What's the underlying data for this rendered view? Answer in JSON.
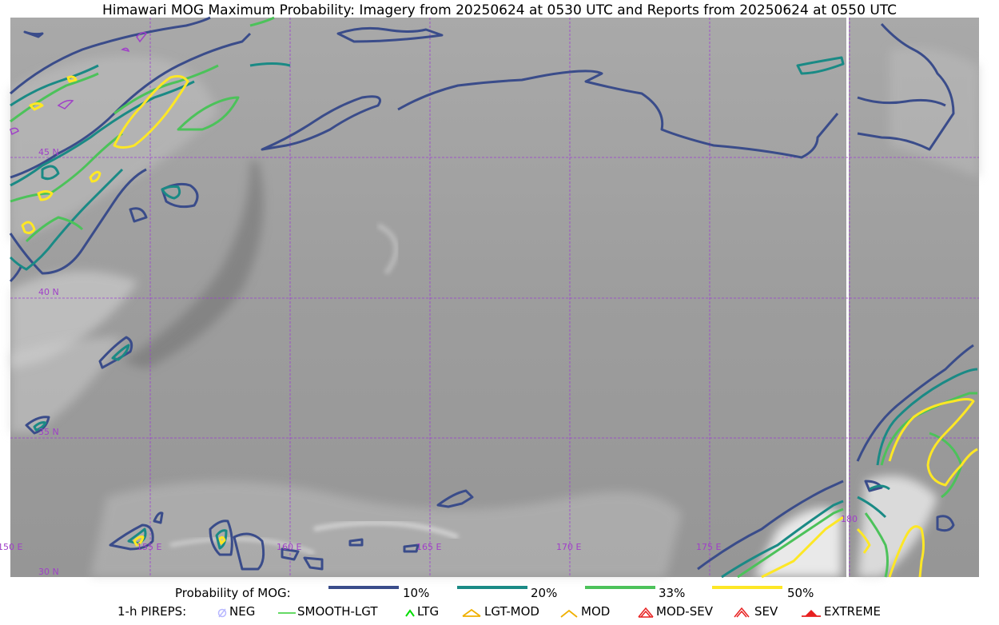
{
  "title": "Himawari MOG Maximum Probability: Imagery from 20250624 at 0530 UTC and Reports from 20250624 at 0550 UTC",
  "map": {
    "grid_labels": {
      "latitudes": [
        "45 N",
        "40 N",
        "35 N",
        "30 N"
      ],
      "longitudes": [
        "150 E",
        "155 E",
        "160 E",
        "165 E",
        "170 E",
        "175 E",
        "180"
      ]
    }
  },
  "legend": {
    "mog_title": "Probability of MOG:",
    "mog_levels": [
      {
        "label": "10%",
        "color": "#3a4c8a"
      },
      {
        "label": "20%",
        "color": "#1a8a85"
      },
      {
        "label": "33%",
        "color": "#4cc25a"
      },
      {
        "label": "50%",
        "color": "#fde725"
      }
    ],
    "pirep_title": "1-h PIREPS:",
    "pireps": [
      {
        "label": "NEG",
        "icon": "neg-icon",
        "color": "#b8b8ff"
      },
      {
        "label": "SMOOTH-LGT",
        "icon": "smooth-lgt-icon",
        "color": "#32cd32"
      },
      {
        "label": "LTG",
        "icon": "ltg-icon",
        "color": "#00dd00"
      },
      {
        "label": "LGT-MOD",
        "icon": "lgt-mod-icon",
        "color": "#f0b000"
      },
      {
        "label": "MOD",
        "icon": "mod-icon",
        "color": "#f0b000"
      },
      {
        "label": "MOD-SEV",
        "icon": "mod-sev-icon",
        "color": "#e82020"
      },
      {
        "label": "SEV",
        "icon": "sev-icon",
        "color": "#e82020"
      },
      {
        "label": "EXTREME",
        "icon": "extreme-icon",
        "color": "#e82020"
      }
    ]
  }
}
